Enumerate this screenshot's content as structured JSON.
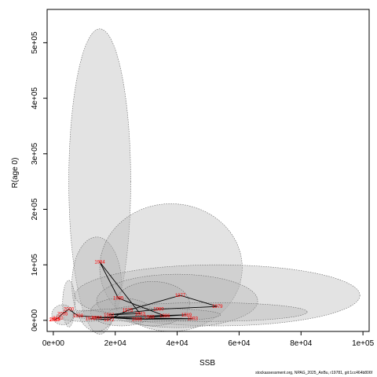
{
  "footer": {
    "source": "stockassessment.org, NPAG_2025_AnBu, r19781, git:1cc464b806f"
  },
  "chart_data": {
    "type": "scatter",
    "title": "",
    "xlabel": "SSB",
    "ylabel": "R(age 0)",
    "xlim": [
      -2000,
      102000
    ],
    "ylim": [
      -20000,
      560000
    ],
    "xticks": [
      {
        "value": 0,
        "label": "0e+00"
      },
      {
        "value": 20000,
        "label": "2e+04"
      },
      {
        "value": 40000,
        "label": "4e+04"
      },
      {
        "value": 60000,
        "label": "6e+04"
      },
      {
        "value": 80000,
        "label": "8e+04"
      },
      {
        "value": 100000,
        "label": "1e+05"
      }
    ],
    "yticks": [
      {
        "value": 0,
        "label": "0e+00"
      },
      {
        "value": 100000,
        "label": "1e+05"
      },
      {
        "value": 200000,
        "label": "2e+05"
      },
      {
        "value": 300000,
        "label": "3e+05"
      },
      {
        "value": 400000,
        "label": "4e+05"
      },
      {
        "value": 500000,
        "label": "5e+05"
      }
    ],
    "ellipses": [
      {
        "cx": 15000,
        "cy": 250000,
        "rx": 10000,
        "ry": 275000
      },
      {
        "cx": 14000,
        "cy": 65000,
        "rx": 8000,
        "ry": 85000
      },
      {
        "cx": 38000,
        "cy": 95000,
        "rx": 23000,
        "ry": 115000
      },
      {
        "cx": 53000,
        "cy": 45000,
        "rx": 46000,
        "ry": 55000
      },
      {
        "cx": 40000,
        "cy": 35000,
        "rx": 26000,
        "ry": 48000
      },
      {
        "cx": 32000,
        "cy": 30000,
        "rx": 12000,
        "ry": 40000
      },
      {
        "cx": 22000,
        "cy": 15000,
        "rx": 10000,
        "ry": 25000
      },
      {
        "cx": 50000,
        "cy": 15000,
        "rx": 32000,
        "ry": 17000
      },
      {
        "cx": 5000,
        "cy": 30000,
        "rx": 2000,
        "ry": 42000
      },
      {
        "cx": 30000,
        "cy": 10000,
        "rx": 24000,
        "ry": 12000
      },
      {
        "cx": 10000,
        "cy": 8000,
        "rx": 9000,
        "ry": 10000
      },
      {
        "cx": 3000,
        "cy": 10000,
        "rx": 3500,
        "ry": 18000
      }
    ],
    "points": [
      {
        "year": "1984",
        "ssb": 15000,
        "r": 105000
      },
      {
        "year": "1985",
        "ssb": 21000,
        "r": 40000
      },
      {
        "year": "1977",
        "ssb": 41000,
        "r": 45000
      },
      {
        "year": "1979",
        "ssb": 53000,
        "r": 25000
      },
      {
        "year": "1980",
        "ssb": 34000,
        "r": 20000
      },
      {
        "year": "1975",
        "ssb": 24000,
        "r": 18000
      },
      {
        "year": "1982",
        "ssb": 18000,
        "r": 10000
      },
      {
        "year": "1990",
        "ssb": 14000,
        "r": 5000
      },
      {
        "year": "1983",
        "ssb": 28000,
        "r": 12000
      },
      {
        "year": "1986",
        "ssb": 36000,
        "r": 8000
      },
      {
        "year": "1988",
        "ssb": 31000,
        "r": 6000
      },
      {
        "year": "1989",
        "ssb": 43000,
        "r": 10000
      },
      {
        "year": "1993",
        "ssb": 45000,
        "r": 3000
      },
      {
        "year": "1995",
        "ssb": 27000,
        "r": 2000
      },
      {
        "year": "2000",
        "ssb": 5000,
        "r": 20000
      },
      {
        "year": "2005",
        "ssb": 3000,
        "r": 12000
      },
      {
        "year": "2010",
        "ssb": 1500,
        "r": 4000
      },
      {
        "year": "2015",
        "ssb": 600,
        "r": 2000
      },
      {
        "year": "2020",
        "ssb": 300,
        "r": 1000
      },
      {
        "year": "1998",
        "ssb": 8000,
        "r": 8000
      },
      {
        "year": "1970",
        "ssb": 12000,
        "r": 3000
      },
      {
        "year": "1972",
        "ssb": 18000,
        "r": 1500
      }
    ],
    "line_order": [
      "1970",
      "1972",
      "1975",
      "1977",
      "1979",
      "1980",
      "1982",
      "1983",
      "1984",
      "1985",
      "1986",
      "1988",
      "1989",
      "1990",
      "1993",
      "1995",
      "1998",
      "2000",
      "2005",
      "2010",
      "2015",
      "2020"
    ]
  }
}
